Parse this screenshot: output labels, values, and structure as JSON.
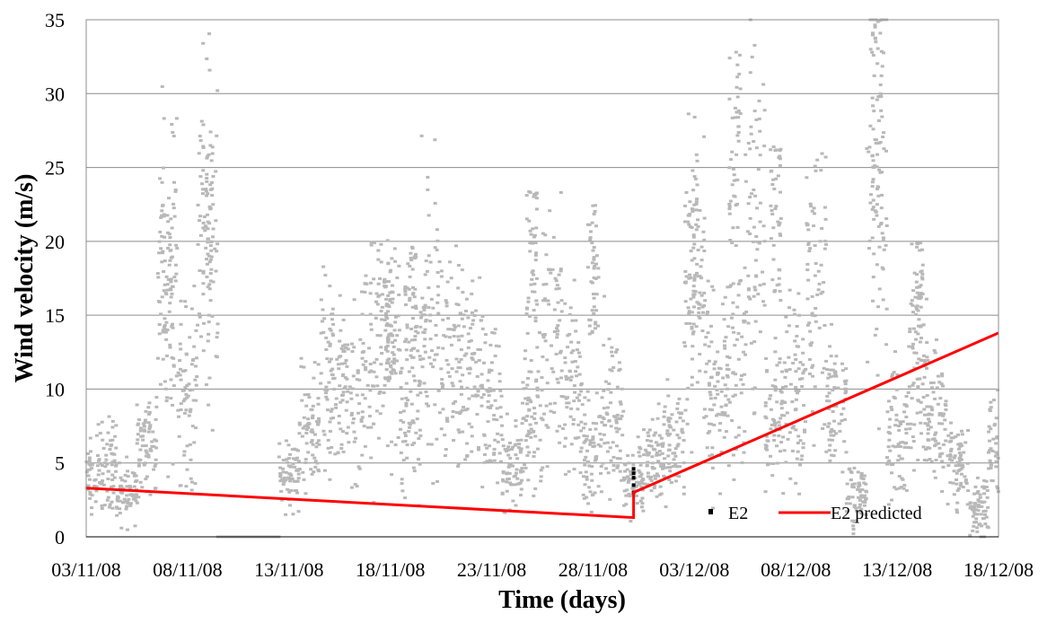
{
  "chart_data": {
    "type": "scatter",
    "title": "",
    "xlabel": "Time (days)",
    "ylabel": "Wind velocity (m/s)",
    "x_type": "date",
    "xlim": [
      "03/11/08",
      "18/12/08"
    ],
    "ylim": [
      0,
      35
    ],
    "x_ticks": [
      "03/11/08",
      "08/11/08",
      "13/11/08",
      "18/11/08",
      "23/11/08",
      "28/11/08",
      "03/12/08",
      "08/12/08",
      "13/12/08",
      "18/12/08"
    ],
    "y_ticks": [
      "0",
      "5",
      "10",
      "15",
      "20",
      "25",
      "30",
      "35"
    ],
    "grid": "horizontal",
    "legend_position": "bottom-right",
    "series": [
      {
        "name": "E2",
        "kind": "scatter",
        "color": "#b8b8b8",
        "legend_color": "#000000",
        "points_sampled": [
          [
            "03/11/08",
            4
          ],
          [
            "04/11/08",
            5
          ],
          [
            "05/11/08",
            3
          ],
          [
            "06/11/08",
            6
          ],
          [
            "07/11/08",
            18
          ],
          [
            "08/11/08",
            10
          ],
          [
            "09/11/08",
            20
          ],
          [
            "10/11/08",
            0
          ],
          [
            "11/11/08",
            0
          ],
          [
            "12/11/08",
            0
          ],
          [
            "13/11/08",
            4
          ],
          [
            "14/11/08",
            7
          ],
          [
            "15/11/08",
            11
          ],
          [
            "16/11/08",
            10
          ],
          [
            "17/11/08",
            12
          ],
          [
            "18/11/08",
            14
          ],
          [
            "19/11/08",
            9
          ],
          [
            "20/11/08",
            15
          ],
          [
            "21/11/08",
            12
          ],
          [
            "22/11/08",
            11
          ],
          [
            "23/11/08",
            9
          ],
          [
            "24/11/08",
            5
          ],
          [
            "25/11/08",
            8
          ],
          [
            "26/11/08",
            14
          ],
          [
            "27/11/08",
            10
          ],
          [
            "28/11/08",
            6
          ],
          [
            "29/11/08",
            9
          ],
          [
            "30/11/08",
            4
          ],
          [
            "01/12/08",
            5
          ],
          [
            "02/12/08",
            6
          ],
          [
            "03/12/08",
            17
          ],
          [
            "04/12/08",
            10
          ],
          [
            "05/12/08",
            12
          ],
          [
            "06/12/08",
            21
          ],
          [
            "07/12/08",
            8
          ],
          [
            "08/12/08",
            10
          ],
          [
            "09/12/08",
            17
          ],
          [
            "10/12/08",
            9
          ],
          [
            "11/12/08",
            3
          ],
          [
            "12/12/08",
            24
          ],
          [
            "13/12/08",
            7
          ],
          [
            "14/12/08",
            11
          ],
          [
            "15/12/08",
            8
          ],
          [
            "16/12/08",
            5
          ],
          [
            "17/12/08",
            2
          ],
          [
            "18/12/08",
            6
          ]
        ],
        "peaks": [
          [
            "07/11/08",
            23
          ],
          [
            "09/11/08",
            26.5
          ],
          [
            "18/11/08",
            17.5
          ],
          [
            "19/11/08",
            20
          ],
          [
            "25/11/08",
            23.5
          ],
          [
            "28/11/08",
            22.5
          ],
          [
            "03/12/08",
            23
          ],
          [
            "05/12/08",
            33
          ],
          [
            "07/12/08",
            26.5
          ],
          [
            "12/12/08",
            35
          ],
          [
            "14/12/08",
            20
          ]
        ]
      },
      {
        "name": "E2 predicted",
        "kind": "line",
        "color": "#ff0000",
        "points": [
          [
            "03/11/08",
            3.3
          ],
          [
            "30/11/08",
            1.3
          ],
          [
            "30/11/08",
            3.0
          ],
          [
            "18/12/08",
            13.8
          ]
        ]
      }
    ],
    "observed_marker": {
      "date": "30/11/08",
      "values": [
        3.0,
        3.5,
        4.0,
        4.3,
        4.6
      ]
    }
  }
}
